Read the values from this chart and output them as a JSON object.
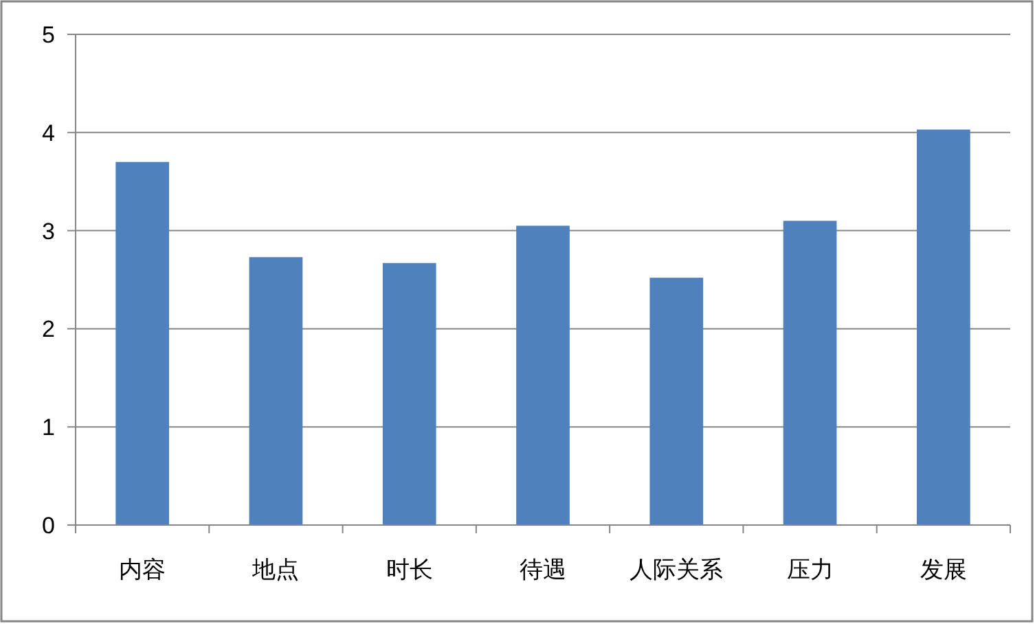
{
  "chart_data": {
    "type": "bar",
    "categories": [
      "内容",
      "地点",
      "时长",
      "待遇",
      "人际关系",
      "压力",
      "发展"
    ],
    "values": [
      3.7,
      2.73,
      2.67,
      3.05,
      2.52,
      3.1,
      4.03
    ],
    "color": "#4f81bd",
    "ylim": [
      0,
      5
    ],
    "yticks": [
      0,
      1,
      2,
      3,
      4,
      5
    ],
    "grid": "y"
  }
}
